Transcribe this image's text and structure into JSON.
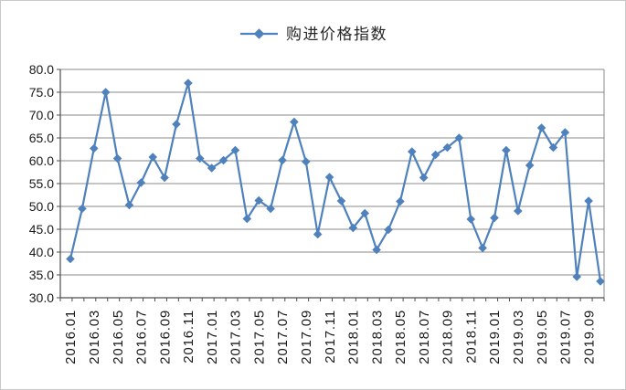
{
  "chart_data": {
    "type": "line",
    "title": "",
    "legend_label": "购进价格指数",
    "series_name": "购进价格指数",
    "legend_position": "top-center",
    "grid": true,
    "marker_shape": "diamond",
    "ylim": [
      30,
      80
    ],
    "ytick_step": 5,
    "x_label_every": 2,
    "y_tick_labels": [
      "80.0",
      "75.0",
      "70.0",
      "65.0",
      "60.0",
      "55.0",
      "50.0",
      "45.0",
      "40.0",
      "35.0",
      "30.0"
    ],
    "x_tick_labels": [
      "2016.01",
      "2016.03",
      "2016.05",
      "2016.07",
      "2016.09",
      "2016.11",
      "2017.01",
      "2017.03",
      "2017.05",
      "2017.07",
      "2017.09",
      "2017.11",
      "2018.01",
      "2018.03",
      "2018.05",
      "2018.07",
      "2018.09",
      "2018.11",
      "2019.01",
      "2019.03",
      "2019.05",
      "2019.07",
      "2019.09"
    ],
    "categories": [
      "2016.01",
      "2016.02",
      "2016.03",
      "2016.04",
      "2016.05",
      "2016.06",
      "2016.07",
      "2016.08",
      "2016.09",
      "2016.10",
      "2016.11",
      "2016.12",
      "2017.01",
      "2017.02",
      "2017.03",
      "2017.04",
      "2017.05",
      "2017.06",
      "2017.07",
      "2017.08",
      "2017.09",
      "2017.10",
      "2017.11",
      "2017.12",
      "2018.01",
      "2018.02",
      "2018.03",
      "2018.04",
      "2018.05",
      "2018.06",
      "2018.07",
      "2018.08",
      "2018.09",
      "2018.10",
      "2018.11",
      "2018.12",
      "2019.01",
      "2019.02",
      "2019.03",
      "2019.04",
      "2019.05",
      "2019.06",
      "2019.07",
      "2019.08",
      "2019.09",
      "2019.10"
    ],
    "values": [
      38.5,
      49.5,
      62.7,
      75.0,
      60.5,
      50.3,
      55.2,
      60.8,
      56.3,
      68.0,
      77.0,
      60.5,
      58.4,
      60.1,
      62.3,
      47.3,
      51.3,
      49.5,
      60.1,
      68.5,
      59.8,
      43.9,
      56.4,
      51.2,
      45.3,
      48.5,
      40.5,
      44.9,
      51.1,
      62.0,
      56.3,
      61.3,
      62.9,
      65.0,
      47.2,
      40.9,
      47.5,
      62.3,
      49.0,
      59.0,
      67.2,
      62.9,
      66.2,
      34.6,
      51.2,
      33.6
    ],
    "colors": {
      "line": "#4f81bd",
      "marker": "#4f81bd",
      "gridline": "#8a8a8a",
      "axis": "#4d4d4d",
      "text": "#1a1a1a"
    }
  }
}
